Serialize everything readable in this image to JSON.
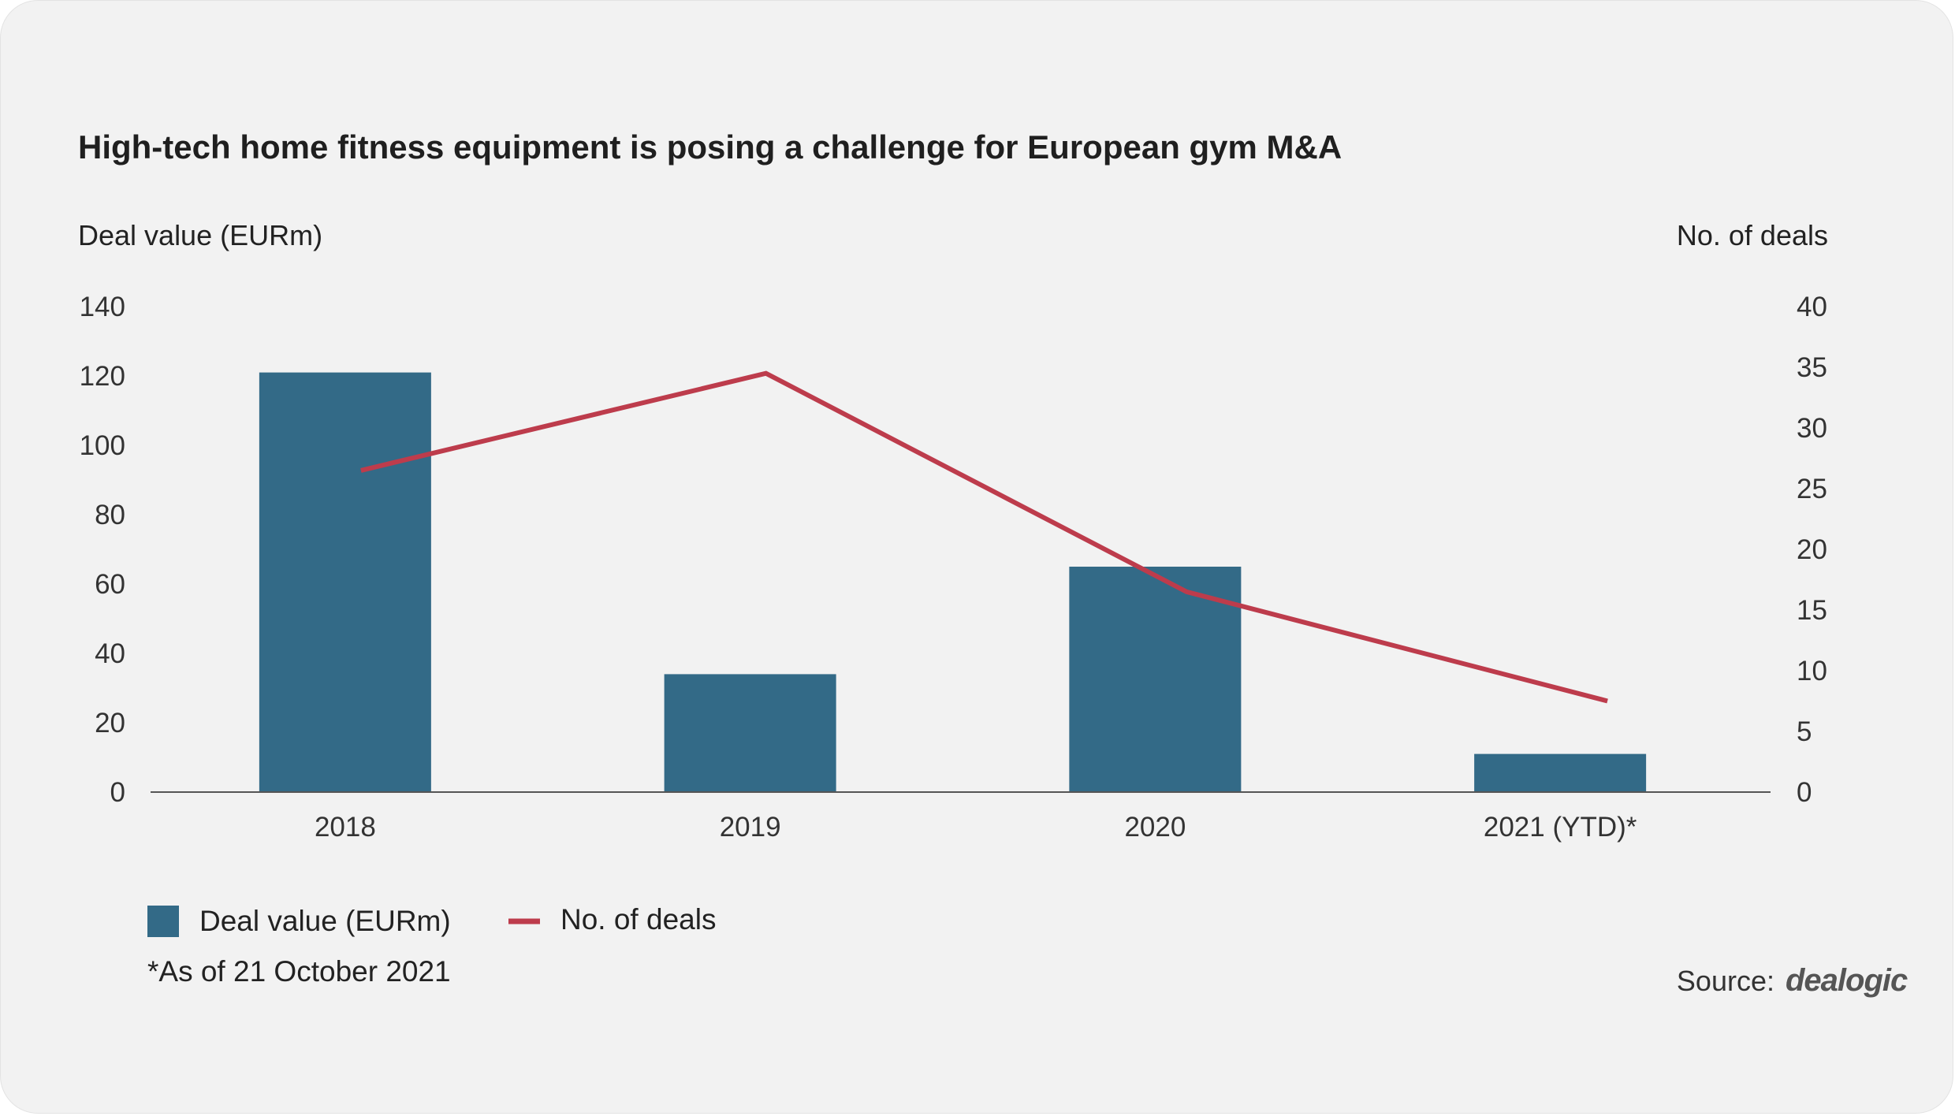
{
  "chart_data": {
    "type": "bar",
    "title": "High-tech home fitness equipment is posing a challenge for European gym M&A",
    "ylabel": "Deal value (EURm)",
    "y2label": "No. of deals",
    "categories": [
      "2018",
      "2019",
      "2020",
      "2021 (YTD)*"
    ],
    "ylim": [
      0,
      140
    ],
    "y2lim": [
      0,
      40
    ],
    "yticks": [
      "0",
      "20",
      "40",
      "60",
      "80",
      "100",
      "120",
      "140"
    ],
    "y2ticks": [
      "0",
      "5",
      "10",
      "15",
      "20",
      "25",
      "30",
      "35",
      "40"
    ],
    "series": [
      {
        "name": "Deal value (EURm)",
        "type": "bar",
        "axis": "left",
        "color": "#336a87",
        "values": [
          121,
          34,
          65,
          11
        ]
      },
      {
        "name": "No. of deals",
        "type": "line",
        "axis": "right",
        "color": "#bd3c4c",
        "values": [
          26.5,
          34.5,
          16.5,
          7.5
        ]
      }
    ],
    "grid": false,
    "legend_position": "bottom-left"
  },
  "footnote": "*As of 21 October 2021",
  "source": {
    "label": "Source:",
    "logo_text": "dealogic"
  }
}
